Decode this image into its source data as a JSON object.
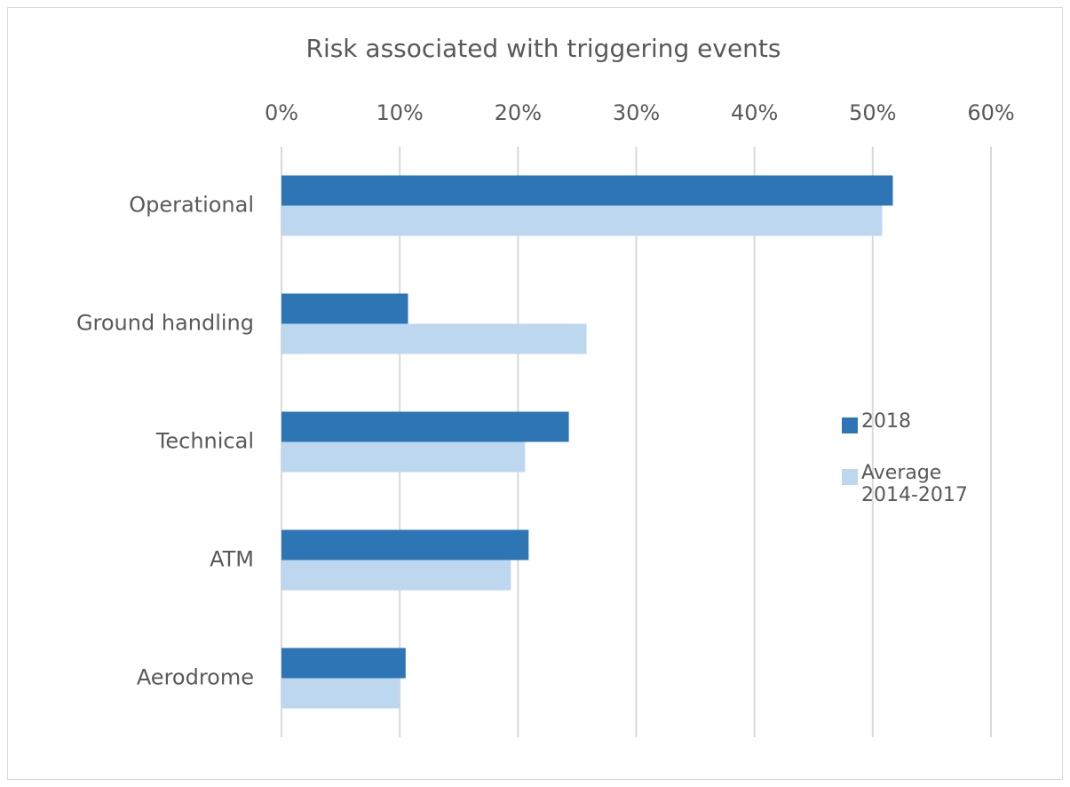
{
  "chart_data": {
    "type": "bar",
    "orientation": "horizontal",
    "title": "Risk associated with triggering events",
    "categories": [
      "Operational",
      "Ground handling",
      "Technical",
      "ATM",
      "Aerodrome"
    ],
    "series": [
      {
        "name": "2018",
        "color": "#2e75b6",
        "values": [
          51.7,
          10.7,
          24.3,
          20.9,
          10.5
        ]
      },
      {
        "name": "Average 2014-2017",
        "color": "#bdd7ee",
        "values": [
          50.8,
          25.8,
          20.6,
          19.4,
          10.0
        ]
      }
    ],
    "xlim": [
      0,
      60
    ],
    "xticks": [
      {
        "value": 0,
        "label": "0%"
      },
      {
        "value": 10,
        "label": "10%"
      },
      {
        "value": 20,
        "label": "20%"
      },
      {
        "value": 30,
        "label": "30%"
      },
      {
        "value": 40,
        "label": "40%"
      },
      {
        "value": 50,
        "label": "50%"
      },
      {
        "value": 60,
        "label": "60%"
      }
    ],
    "grid": true,
    "legend": "right"
  }
}
